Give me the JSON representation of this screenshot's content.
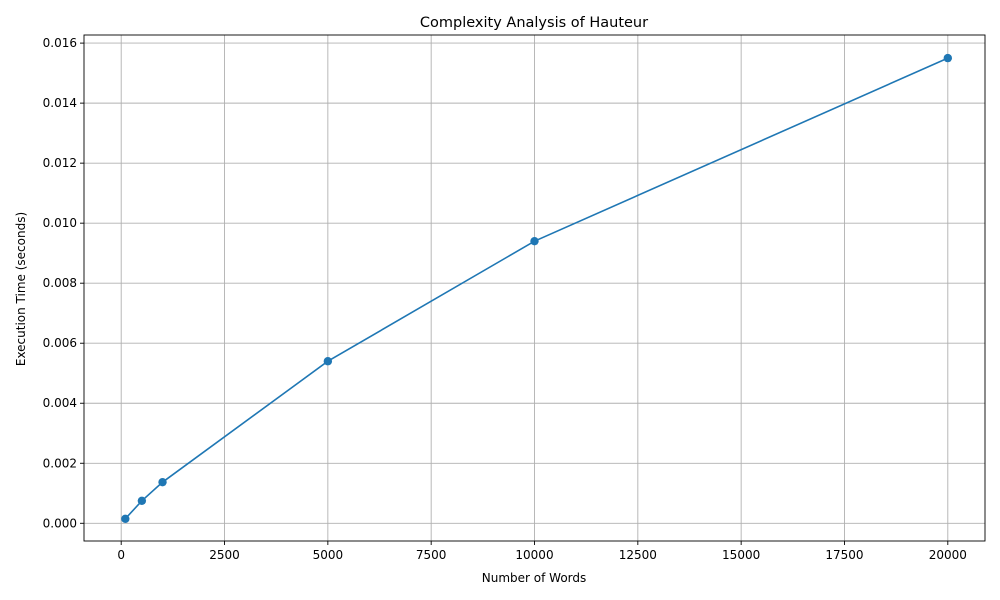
{
  "chart_data": {
    "type": "line",
    "title": "Complexity Analysis of Hauteur",
    "xlabel": "Number of Words",
    "ylabel": "Execution Time (seconds)",
    "xlim": [
      -900,
      20900
    ],
    "ylim": [
      -0.00059,
      0.01627
    ],
    "xticks": [
      0,
      2500,
      5000,
      7500,
      10000,
      12500,
      15000,
      17500,
      20000
    ],
    "xtick_labels": [
      "0",
      "2500",
      "5000",
      "7500",
      "10000",
      "12500",
      "15000",
      "17500",
      "20000"
    ],
    "yticks": [
      0.0,
      0.002,
      0.004,
      0.006,
      0.008,
      0.01,
      0.012,
      0.014,
      0.016
    ],
    "ytick_labels": [
      "0.000",
      "0.002",
      "0.004",
      "0.006",
      "0.008",
      "0.010",
      "0.012",
      "0.014",
      "0.016"
    ],
    "grid": true,
    "series": [
      {
        "color": "#1f77b4",
        "marker": "circle",
        "x": [
          100,
          500,
          1000,
          5000,
          10000,
          20000
        ],
        "y": [
          0.00015,
          0.00075,
          0.00137,
          0.0054,
          0.0094,
          0.0155
        ]
      }
    ]
  }
}
